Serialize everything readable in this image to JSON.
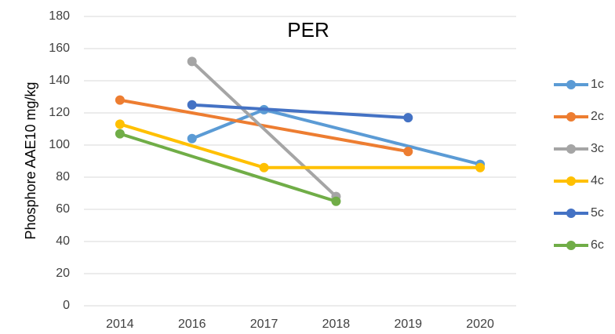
{
  "chart_data": {
    "type": "line",
    "title": "PER",
    "y_label": "Phosphore AAE10 mg/kg",
    "categories": [
      "2014",
      "2016",
      "2017",
      "2018",
      "2019",
      "2020"
    ],
    "series": [
      {
        "name": "1c",
        "color": "#5b9bd5",
        "values": [
          null,
          104,
          122,
          null,
          null,
          88
        ]
      },
      {
        "name": "2c",
        "color": "#ed7d31",
        "values": [
          128,
          null,
          null,
          null,
          96,
          null
        ]
      },
      {
        "name": "3c",
        "color": "#a5a5a5",
        "values": [
          null,
          152,
          null,
          68,
          null,
          null
        ]
      },
      {
        "name": "4c",
        "color": "#ffc000",
        "values": [
          113,
          null,
          86,
          null,
          null,
          86
        ]
      },
      {
        "name": "5c",
        "color": "#4472c4",
        "values": [
          null,
          125,
          null,
          null,
          117,
          null
        ]
      },
      {
        "name": "6c",
        "color": "#70ad47",
        "values": [
          107,
          null,
          null,
          65,
          null,
          null
        ]
      }
    ],
    "ylim": [
      0,
      180
    ],
    "yticks": [
      0,
      20,
      40,
      60,
      80,
      100,
      120,
      140,
      160,
      180
    ],
    "grid": true,
    "connect_gaps": true,
    "legend": "right"
  }
}
